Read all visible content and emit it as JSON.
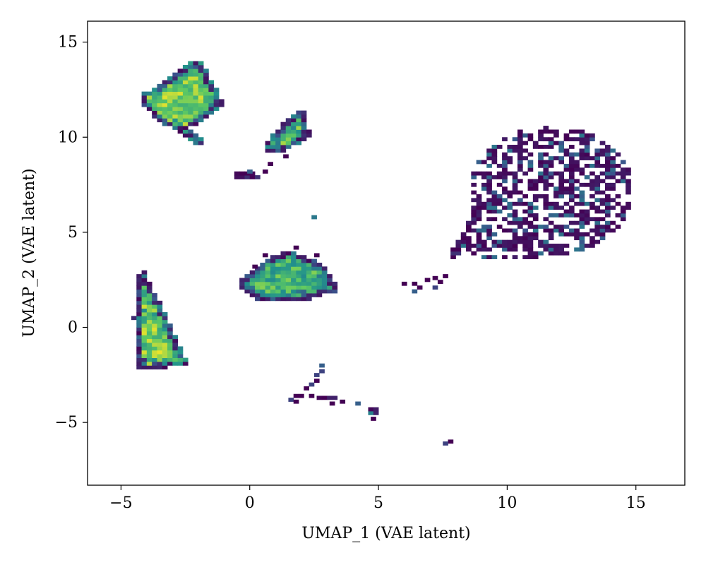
{
  "chart_data": {
    "type": "heatmap",
    "title": "",
    "xlabel": "UMAP_1 (VAE latent)",
    "ylabel": "UMAP_2 (VAE latent)",
    "xlim": [
      -6.3,
      16.9
    ],
    "ylim": [
      -8.3,
      16.1
    ],
    "x_ticks": [
      -5,
      0,
      5,
      10,
      15
    ],
    "x_tick_labels": [
      "−5",
      "0",
      "5",
      "10",
      "15"
    ],
    "y_ticks": [
      -5,
      0,
      5,
      10,
      15
    ],
    "y_tick_labels": [
      "−5",
      "0",
      "5",
      "10",
      "15"
    ],
    "grid": false,
    "legend": "none",
    "colormap": "viridis",
    "bin_size": 0.2,
    "colors": {
      "low": "#440154",
      "low_mid": "#3b528b",
      "mid": "#21918c",
      "mid_high": "#5ec962",
      "high": "#fde725"
    },
    "clusters": [
      {
        "vertices": [
          [
            -4.1,
            12.3
          ],
          [
            -2.3,
            13.9
          ],
          [
            -1.8,
            13.9
          ],
          [
            -1.0,
            11.7
          ],
          [
            -2.3,
            10.5
          ],
          [
            -1.7,
            9.7
          ],
          [
            -2.1,
            9.7
          ],
          [
            -3.7,
            11.0
          ],
          [
            -4.3,
            12.0
          ]
        ],
        "level": 0.78
      },
      {
        "vertices": [
          [
            -4.4,
            2.8
          ],
          [
            -4.1,
            3.0
          ],
          [
            -3.2,
            0.5
          ],
          [
            -2.4,
            -1.8
          ],
          [
            -2.2,
            -2.0
          ],
          [
            -4.3,
            -2.2
          ],
          [
            -4.5,
            0.5
          ]
        ],
        "level": 0.8
      },
      {
        "vertices": [
          [
            -0.5,
            2.4
          ],
          [
            0.5,
            3.5
          ],
          [
            1.5,
            4.1
          ],
          [
            2.8,
            3.4
          ],
          [
            3.3,
            2.5
          ],
          [
            3.4,
            1.9
          ],
          [
            2.3,
            1.5
          ],
          [
            1.0,
            1.3
          ],
          [
            0.2,
            1.5
          ],
          [
            -0.4,
            2.0
          ]
        ],
        "level": 0.65
      },
      {
        "vertices": [
          [
            0.5,
            9.6
          ],
          [
            1.0,
            10.3
          ],
          [
            1.6,
            11.2
          ],
          [
            2.1,
            11.4
          ],
          [
            2.3,
            10.5
          ],
          [
            2.4,
            10.0
          ],
          [
            1.8,
            9.6
          ],
          [
            1.5,
            9.3
          ],
          [
            0.7,
            9.3
          ]
        ],
        "level": 0.72
      },
      {
        "vertices": [
          [
            -0.5,
            8.2
          ],
          [
            0.1,
            8.2
          ],
          [
            0.4,
            7.9
          ],
          [
            -0.5,
            7.8
          ]
        ],
        "level": 0.45
      },
      {
        "vertices": [
          [
            8.0,
            3.4
          ],
          [
            8.4,
            4.8
          ],
          [
            9.0,
            5.8
          ],
          [
            8.9,
            6.7
          ],
          [
            8.5,
            5.5
          ],
          [
            7.8,
            4.0
          ]
        ],
        "level": 0.35
      },
      {
        "vertices": [
          [
            4.6,
            -4.2
          ],
          [
            5.0,
            -4.2
          ],
          [
            5.0,
            -4.6
          ],
          [
            4.6,
            -4.6
          ]
        ],
        "level": 0.9
      },
      {
        "vertices": [
          [
            2.7,
            -3.5
          ],
          [
            3.2,
            -3.6
          ],
          [
            3.5,
            -3.8
          ],
          [
            2.6,
            -3.8
          ]
        ],
        "level": 0.4
      }
    ],
    "sparse_regions": [
      {
        "center": [
          11.7,
          7.2
        ],
        "rx": 3.2,
        "ry": 3.4,
        "density": 0.55
      },
      {
        "center": [
          10.2,
          4.5
        ],
        "rx": 2.0,
        "ry": 1.0,
        "density": 0.5
      }
    ],
    "scattered_bins": [
      [
        2.5,
        5.8,
        0.4
      ],
      [
        6.0,
        2.3,
        0.0
      ],
      [
        6.4,
        2.3,
        0.0
      ],
      [
        6.6,
        2.1,
        0.0
      ],
      [
        6.4,
        1.9,
        0.3
      ],
      [
        6.9,
        2.5,
        0.0
      ],
      [
        7.2,
        2.6,
        0.0
      ],
      [
        7.4,
        2.4,
        0.0
      ],
      [
        7.2,
        2.1,
        0.2
      ],
      [
        7.6,
        2.7,
        0.0
      ],
      [
        2.8,
        -2.0,
        0.3
      ],
      [
        2.8,
        -2.3,
        0.2
      ],
      [
        2.6,
        -2.5,
        0.2
      ],
      [
        2.6,
        -2.8,
        0.0
      ],
      [
        2.4,
        -3.0,
        0.2
      ],
      [
        2.2,
        -3.2,
        0.0
      ],
      [
        2.4,
        -3.6,
        0.0
      ],
      [
        1.8,
        -3.6,
        0.0
      ],
      [
        1.6,
        -3.8,
        0.2
      ],
      [
        1.8,
        -3.9,
        0.0
      ],
      [
        2.0,
        -3.6,
        0.0
      ],
      [
        3.6,
        -3.9,
        0.0
      ],
      [
        3.2,
        -4.0,
        0.0
      ],
      [
        4.2,
        -4.0,
        0.3
      ],
      [
        4.8,
        -4.8,
        0.0
      ],
      [
        7.8,
        -6.0,
        0.0
      ],
      [
        7.6,
        -6.1,
        0.2
      ],
      [
        0.8,
        8.6,
        0.0
      ],
      [
        0.6,
        8.2,
        0.0
      ],
      [
        1.4,
        9.0,
        0.0
      ],
      [
        0.0,
        8.2,
        0.3
      ],
      [
        0.6,
        3.8,
        0.0
      ],
      [
        1.8,
        4.2,
        0.0
      ],
      [
        2.6,
        3.8,
        0.0
      ],
      [
        0.2,
        3.2,
        0.0
      ]
    ],
    "seed": 17
  }
}
